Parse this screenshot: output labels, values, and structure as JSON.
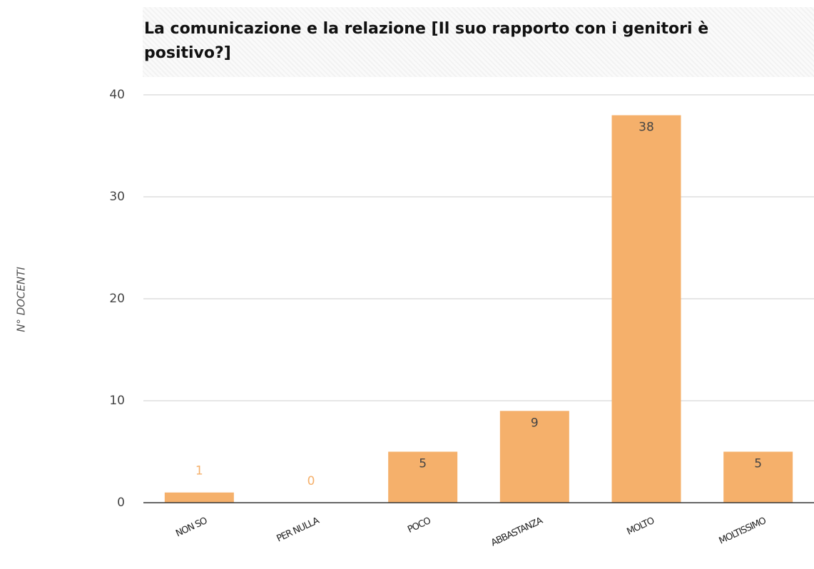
{
  "chart_data": {
    "type": "bar",
    "title": "La comunicazione e la relazione [Il suo rapporto con i genitori è positivo?]",
    "y_label": "N° DOCENTI",
    "categories": [
      "NON SO",
      "PER NULLA",
      "POCO",
      "ABBASTANZA",
      "MOLTO",
      "MOLTISSIMO"
    ],
    "values": [
      1,
      0,
      5,
      9,
      38,
      5
    ],
    "color": "#f5b06b",
    "ylim": [
      0,
      40
    ],
    "yticks": [
      0,
      10,
      20,
      30,
      40
    ],
    "grid": true
  }
}
